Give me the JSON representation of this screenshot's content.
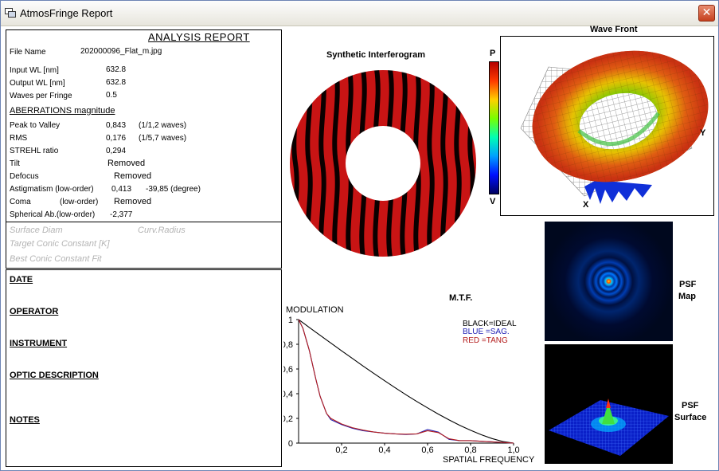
{
  "window": {
    "title": "AtmosFringe  Report",
    "close_label": "✕"
  },
  "report": {
    "title": "ANALYSIS  REPORT",
    "file_name_label": "File Name",
    "file_name": "202000096_Flat_m.jpg",
    "input_wl_label": "Input  WL [nm]",
    "input_wl": "632.8",
    "output_wl_label": "Output WL [nm]",
    "output_wl": "632.8",
    "waves_label": "Waves per Fringe",
    "waves": "0.5",
    "aberr_heading": "ABERRATIONS magnitude",
    "ptv_label": "Peak to Valley",
    "ptv": "0,843",
    "ptv_note": "(1/1,2 waves)",
    "rms_label": "RMS",
    "rms": "0,176",
    "rms_note": "(1/5,7 waves)",
    "strehl_label": "STREHL ratio",
    "strehl": "0,294",
    "tilt_label": "Tilt",
    "tilt": "Removed",
    "defocus_label": "Defocus",
    "defocus": "Removed",
    "astig_label": "Astigmatism  (low-order)",
    "astig": "0,413",
    "astig_angle": "-39,85  (degree)",
    "coma_label": "Coma",
    "coma_order": "(low-order)",
    "coma": "Removed",
    "spherical_label": "Spherical Ab.(low-order)",
    "spherical": "-2,377",
    "surface_diam": "Surface Diam",
    "curv_radius": "Curv.Radius",
    "target_conic": "Target Conic Constant [K]",
    "best_conic": "Best Conic Constant Fit"
  },
  "meta": {
    "date": "DATE",
    "operator": "OPERATOR",
    "instrument": "INSTRUMENT",
    "optic": "OPTIC DESCRIPTION",
    "notes": "NOTES"
  },
  "interferogram": {
    "title": "Synthetic Interferogram",
    "fringe_color": "#c81414"
  },
  "scale": {
    "top": "P",
    "bottom": "V"
  },
  "wavefront": {
    "title": "Wave Front",
    "x_axis": "X",
    "y_axis": "Y"
  },
  "psf": {
    "map_label_1": "PSF",
    "map_label_2": "Map",
    "surface_label_1": "PSF",
    "surface_label_2": "Surface"
  },
  "chart_data": {
    "type": "line",
    "title": "M.T.F.",
    "ylabel": "MODULATION",
    "xlabel": "SPATIAL FREQUENCY",
    "xlim": [
      0,
      1
    ],
    "ylim": [
      0,
      1
    ],
    "x_ticks": [
      "0,2",
      "0,4",
      "0,6",
      "0,8",
      "1,0"
    ],
    "y_ticks": [
      "0",
      "0,2",
      "0,4",
      "0,6",
      "0,8",
      "1"
    ],
    "legend": [
      "BLACK=IDEAL",
      "BLUE  =SAG.",
      "RED    =TANG"
    ],
    "x": [
      0,
      0.02,
      0.05,
      0.08,
      0.1,
      0.13,
      0.15,
      0.2,
      0.25,
      0.3,
      0.35,
      0.4,
      0.45,
      0.5,
      0.55,
      0.6,
      0.65,
      0.7,
      0.75,
      0.8,
      0.85,
      0.9,
      0.95,
      1.0
    ],
    "series": [
      {
        "name": "IDEAL",
        "color": "#000000",
        "values": [
          1,
          0.975,
          0.936,
          0.898,
          0.873,
          0.835,
          0.81,
          0.747,
          0.686,
          0.624,
          0.564,
          0.505,
          0.447,
          0.391,
          0.337,
          0.285,
          0.235,
          0.188,
          0.144,
          0.104,
          0.068,
          0.037,
          0.013,
          0
        ]
      },
      {
        "name": "SAG.",
        "color": "#1e1eb4",
        "values": [
          1,
          0.93,
          0.75,
          0.52,
          0.38,
          0.24,
          0.19,
          0.15,
          0.12,
          0.1,
          0.09,
          0.08,
          0.075,
          0.07,
          0.075,
          0.11,
          0.09,
          0.03,
          0.02,
          0.02,
          0.015,
          0.01,
          0.005,
          0
        ]
      },
      {
        "name": "TANG",
        "color": "#b41e1e",
        "values": [
          1,
          0.93,
          0.75,
          0.52,
          0.38,
          0.24,
          0.2,
          0.155,
          0.125,
          0.105,
          0.09,
          0.08,
          0.075,
          0.072,
          0.075,
          0.1,
          0.085,
          0.035,
          0.02,
          0.02,
          0.015,
          0.01,
          0.005,
          0
        ]
      }
    ]
  }
}
